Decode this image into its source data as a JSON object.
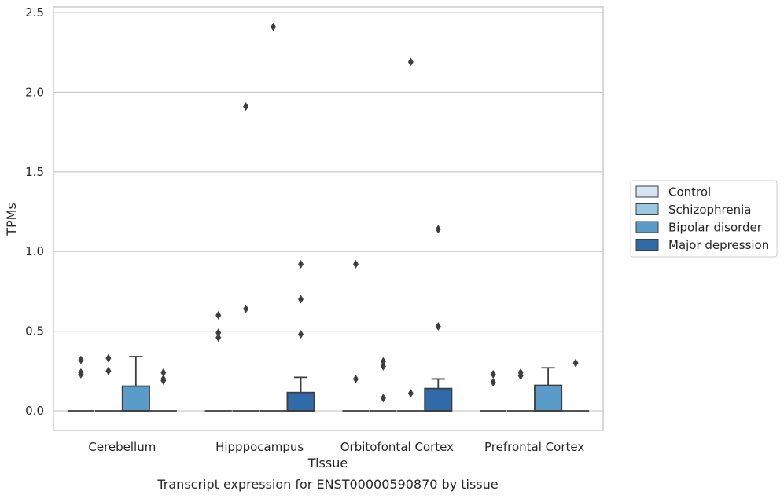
{
  "chart_data": {
    "type": "box",
    "caption": "Transcript expression for ENST00000590870 by tissue",
    "xlabel": "Tissue",
    "ylabel": "TPMs",
    "ylim": [
      -0.12,
      2.54
    ],
    "yticks": [
      0.0,
      0.5,
      1.0,
      1.5,
      2.0,
      2.5
    ],
    "ytick_labels": [
      "0.0",
      "0.5",
      "1.0",
      "1.5",
      "2.0",
      "2.5"
    ],
    "grid": "horizontal",
    "legend_position": "right",
    "categories": [
      "Cerebellum",
      "Hipppocampus",
      "Orbitofontal Cortex",
      "Prefrontal Cortex"
    ],
    "series": [
      {
        "name": "Control",
        "color": "#d6e5f3",
        "boxes": [
          {
            "q1": 0,
            "median": 0,
            "q3": 0,
            "whisker_low": 0,
            "whisker_high": 0,
            "outliers": [
              0.32,
              0.24,
              0.23
            ]
          },
          {
            "q1": 0,
            "median": 0,
            "q3": 0,
            "whisker_low": 0,
            "whisker_high": 0,
            "outliers": [
              0.6,
              0.49,
              0.46
            ]
          },
          {
            "q1": 0,
            "median": 0,
            "q3": 0,
            "whisker_low": 0,
            "whisker_high": 0,
            "outliers": [
              0.92,
              0.2
            ]
          },
          {
            "q1": 0,
            "median": 0,
            "q3": 0,
            "whisker_low": 0,
            "whisker_high": 0,
            "outliers": [
              0.23,
              0.18
            ]
          }
        ]
      },
      {
        "name": "Schizophrenia",
        "color": "#9ac8e0",
        "boxes": [
          {
            "q1": 0,
            "median": 0,
            "q3": 0,
            "whisker_low": 0,
            "whisker_high": 0,
            "outliers": [
              0.33,
              0.25
            ]
          },
          {
            "q1": 0,
            "median": 0,
            "q3": 0,
            "whisker_low": 0,
            "whisker_high": 0,
            "outliers": [
              1.91,
              0.64
            ]
          },
          {
            "q1": 0,
            "median": 0,
            "q3": 0,
            "whisker_low": 0,
            "whisker_high": 0,
            "outliers": [
              0.31,
              0.28,
              0.08
            ]
          },
          {
            "q1": 0,
            "median": 0,
            "q3": 0,
            "whisker_low": 0,
            "whisker_high": 0,
            "outliers": [
              0.24,
              0.22
            ]
          }
        ]
      },
      {
        "name": "Bipolar disorder",
        "color": "#5a9cc9",
        "boxes": [
          {
            "q1": 0,
            "median": 0,
            "q3": 0.155,
            "whisker_low": 0,
            "whisker_high": 0.34,
            "outliers": []
          },
          {
            "q1": 0,
            "median": 0,
            "q3": 0,
            "whisker_low": 0,
            "whisker_high": 0,
            "outliers": [
              2.41
            ]
          },
          {
            "q1": 0,
            "median": 0,
            "q3": 0,
            "whisker_low": 0,
            "whisker_high": 0,
            "outliers": [
              2.19,
              0.11
            ]
          },
          {
            "q1": 0,
            "median": 0,
            "q3": 0.16,
            "whisker_low": 0,
            "whisker_high": 0.27,
            "outliers": []
          }
        ]
      },
      {
        "name": "Major depression",
        "color": "#2e6ba8",
        "boxes": [
          {
            "q1": 0,
            "median": 0,
            "q3": 0,
            "whisker_low": 0,
            "whisker_high": 0,
            "outliers": [
              0.24,
              0.2,
              0.19
            ]
          },
          {
            "q1": 0,
            "median": 0,
            "q3": 0.115,
            "whisker_low": 0,
            "whisker_high": 0.21,
            "outliers": [
              0.92,
              0.7,
              0.48
            ]
          },
          {
            "q1": 0,
            "median": 0,
            "q3": 0.14,
            "whisker_low": 0,
            "whisker_high": 0.2,
            "outliers": [
              1.14,
              0.53
            ]
          },
          {
            "q1": 0,
            "median": 0,
            "q3": 0,
            "whisker_low": 0,
            "whisker_high": 0,
            "outliers": [
              0.3
            ]
          }
        ]
      }
    ]
  }
}
